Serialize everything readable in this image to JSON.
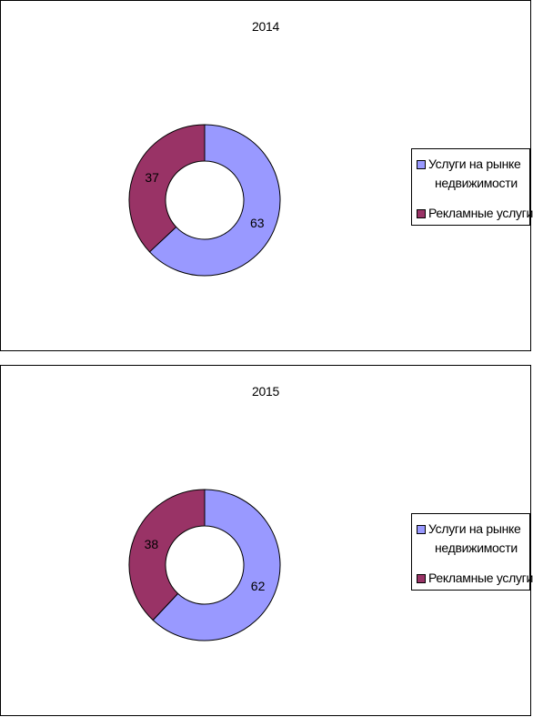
{
  "colors": {
    "series_a": "#9999ff",
    "series_b": "#993366",
    "edge": "#000000"
  },
  "chart_data": [
    {
      "type": "pie",
      "title": "2014",
      "categories": [
        "Услуги на рынке недвижимости",
        "Рекламные услуги"
      ],
      "values": [
        63,
        37
      ],
      "data_labels": [
        "63",
        "37"
      ],
      "legend": {
        "placement": "right",
        "entries": [
          {
            "line1": "Услуги на рынке",
            "line2": "недвижимости"
          },
          {
            "line1": "Рекламные услуги",
            "line2": ""
          }
        ]
      },
      "donut": true
    },
    {
      "type": "pie",
      "title": "2015",
      "categories": [
        "Услуги на рынке недвижимости",
        "Рекламные услуги"
      ],
      "values": [
        62,
        38
      ],
      "data_labels": [
        "62",
        "38"
      ],
      "legend": {
        "placement": "right",
        "entries": [
          {
            "line1": "Услуги на рынке",
            "line2": "недвижимости"
          },
          {
            "line1": "Рекламные услуги",
            "line2": ""
          }
        ]
      },
      "donut": true
    }
  ]
}
